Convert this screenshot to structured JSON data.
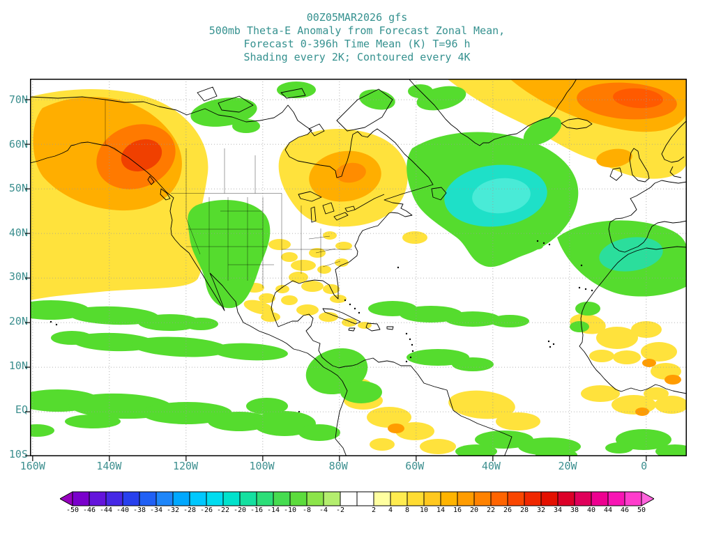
{
  "title": {
    "lines": [
      "00Z05MAR2026 gfs",
      "500mb Theta-E Anomaly from Forecast Zonal Mean,",
      "Forecast 0-396h Time Mean (K) T=96 h",
      "Shading every 2K; Contoured every 4K"
    ]
  },
  "map": {
    "lat_labels": [
      "70N",
      "60N",
      "50N",
      "40N",
      "30N",
      "20N",
      "10N",
      "EQ",
      "10S"
    ],
    "lon_labels": [
      "160W",
      "140W",
      "120W",
      "100W",
      "80W",
      "60W",
      "40W",
      "20W",
      "0"
    ],
    "regions": [
      {
        "location": "Gulf of Alaska / Northeast Pacific",
        "anomaly": "positive",
        "approx_peak": "+22K"
      },
      {
        "location": "Eastern Canada / Quebec",
        "anomaly": "positive",
        "approx_peak": "+12K"
      },
      {
        "location": "Central North Atlantic south of Greenland",
        "anomaly": "negative",
        "approx_peak": "-14K"
      },
      {
        "location": "Norwegian Sea / Northern Europe",
        "anomaly": "positive",
        "approx_peak": "+18K"
      },
      {
        "location": "Western United States Great Basin",
        "anomaly": "negative",
        "approx_peak": "-8K"
      },
      {
        "location": "Iberia / Northwest Africa",
        "anomaly": "negative",
        "approx_peak": "-8K"
      },
      {
        "location": "Tropics and subtropics",
        "anomaly": "mixed weak",
        "approx_peak": "+/-4K"
      }
    ]
  },
  "colorbar": {
    "labels": [
      "-50",
      "-46",
      "-44",
      "-40",
      "-38",
      "-34",
      "-32",
      "-28",
      "-26",
      "-22",
      "-20",
      "-16",
      "-14",
      "-10",
      "-8",
      "-4",
      "-2",
      "2",
      "4",
      "8",
      "10",
      "14",
      "16",
      "20",
      "22",
      "26",
      "28",
      "32",
      "34",
      "38",
      "40",
      "44",
      "46",
      "50"
    ],
    "segment_colors": [
      "#7A00CC",
      "#6414DC",
      "#4628E6",
      "#2840EE",
      "#2060F5",
      "#1E86FA",
      "#00A8FF",
      "#00C8FF",
      "#00DCF0",
      "#00E2CC",
      "#14E0A0",
      "#2CDE78",
      "#46DC50",
      "#5CDC3C",
      "#8CE44A",
      "#B4EE6E",
      "#FFFFFF",
      "#FFFFFF",
      "#FFFFA0",
      "#FFEC50",
      "#FFDC32",
      "#FFC81E",
      "#FFB400",
      "#FF9C00",
      "#FF8200",
      "#FF6400",
      "#FA4600",
      "#F02800",
      "#E41000",
      "#DC0028",
      "#E0005A",
      "#EE0090",
      "#F814B4",
      "#FF3CCC"
    ],
    "left_arrow_color": "#9600BE",
    "right_arrow_color": "#FF64DC",
    "shading_palette": {
      "green": "#55DC2E",
      "cyan": "#1EE0C8",
      "yellow": "#FFE23C",
      "orange": "#FFAE00",
      "deep_orange": "#FF7A00",
      "red_orange": "#F04000"
    }
  }
}
